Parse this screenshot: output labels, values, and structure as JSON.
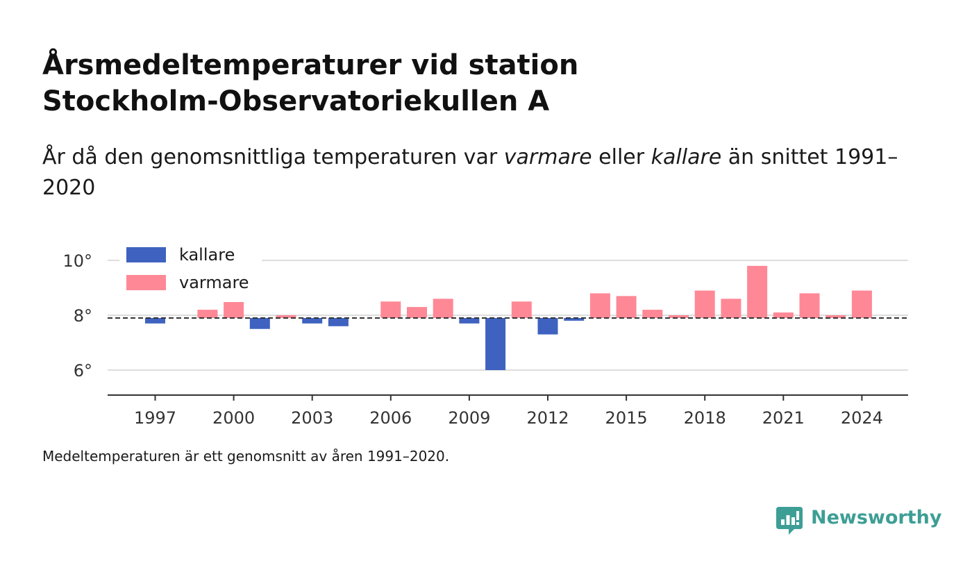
{
  "title_lines": [
    "Årsmedeltemperaturer vid station",
    "Stockholm-Observatoriekullen A"
  ],
  "subtitle": {
    "part1": "År då den genomsnittliga temperaturen var ",
    "em1": "varmare",
    "part2": " eller ",
    "em2": "kallare",
    "part3": " än snittet 1991–2020"
  },
  "footnote": "Medeltemperaturen är ett genomsnitt av åren 1991–2020.",
  "brand": "Newsworthy",
  "colors": {
    "kallare": "#3f62c0",
    "varmare": "#ff8896",
    "brand": "#3d9e95",
    "baseline": "#333333"
  },
  "chart_data": {
    "type": "bar",
    "years": [
      1996,
      1997,
      1998,
      1999,
      2000,
      2001,
      2002,
      2003,
      2004,
      2005,
      2006,
      2007,
      2008,
      2009,
      2010,
      2011,
      2012,
      2013,
      2014,
      2015,
      2016,
      2017,
      2018,
      2019,
      2020,
      2021,
      2022,
      2023,
      2024
    ],
    "values": [
      7.9,
      7.7,
      7.9,
      8.2,
      8.5,
      7.5,
      8.0,
      7.7,
      7.6,
      7.9,
      8.5,
      8.3,
      8.6,
      7.7,
      6.0,
      8.5,
      7.3,
      7.8,
      8.8,
      8.7,
      8.2,
      8.0,
      8.9,
      8.6,
      9.8,
      8.1,
      8.8,
      8.0,
      8.9
    ],
    "baseline": 7.9,
    "ylim": [
      5.0,
      10.5
    ],
    "yticks": [
      6,
      8,
      10
    ],
    "ytick_labels": [
      "6°",
      "8°",
      "10°"
    ],
    "xticks": [
      1997,
      2000,
      2003,
      2006,
      2009,
      2012,
      2015,
      2018,
      2021,
      2024
    ],
    "xtick_labels": [
      "1997",
      "2000",
      "2003",
      "2006",
      "2009",
      "2012",
      "2015",
      "2018",
      "2021",
      "2024"
    ],
    "legend": [
      {
        "name": "kallare",
        "color": "#3f62c0"
      },
      {
        "name": "varmare",
        "color": "#ff8896"
      }
    ],
    "legend_position": "top-left",
    "grid": true
  }
}
